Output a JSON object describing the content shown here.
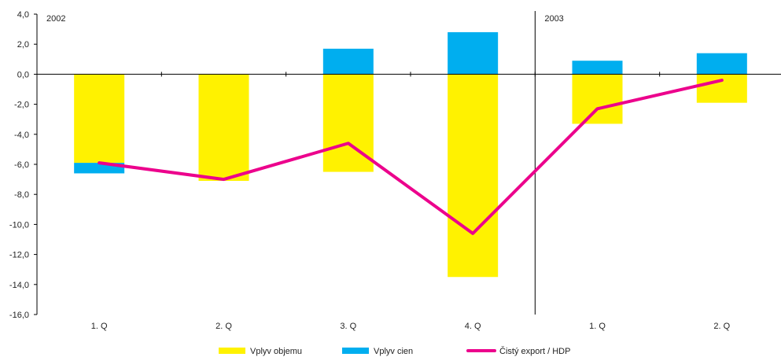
{
  "chart_data": {
    "type": "bar",
    "categories": [
      "1. Q",
      "2. Q",
      "3. Q",
      "4. Q",
      "1. Q",
      "2. Q"
    ],
    "year_labels": [
      {
        "label": "2002",
        "category_index": 0
      },
      {
        "label": "2003",
        "category_index": 4
      }
    ],
    "series": [
      {
        "name": "Vplyv objemu",
        "kind": "bar",
        "color": "#fff200",
        "values": [
          -5.9,
          -7.1,
          -6.5,
          -13.5,
          -3.3,
          -1.9
        ]
      },
      {
        "name": "Vplyv cien",
        "kind": "bar",
        "color": "#00aeef",
        "values": [
          -0.7,
          0.0,
          1.7,
          2.8,
          0.9,
          1.4
        ]
      },
      {
        "name": "Čistý export / HDP",
        "kind": "line",
        "color": "#ec008c",
        "values": [
          -5.9,
          -7.0,
          -4.6,
          -10.6,
          -2.3,
          -0.4
        ]
      }
    ],
    "ylim": [
      -16,
      4
    ],
    "yticks": [
      "4,0",
      "2,0",
      "0,0",
      "-2,0",
      "-4,0",
      "-6,0",
      "-8,0",
      "-10,0",
      "-12,0",
      "-14,0",
      "-16,0"
    ],
    "grid": false,
    "legend_position": "bottom"
  }
}
